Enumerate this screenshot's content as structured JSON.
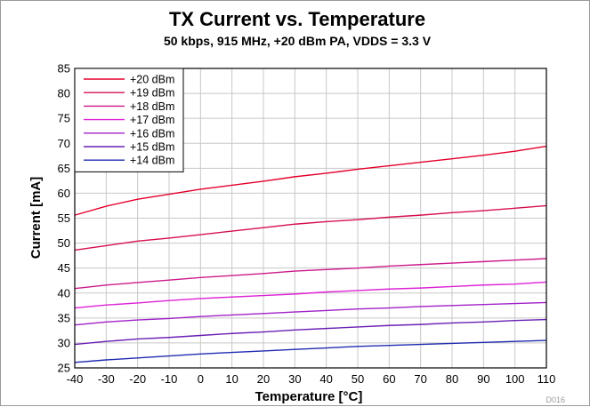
{
  "chart_data": {
    "type": "line",
    "title": "TX Current vs. Temperature",
    "subtitle": "50 kbps, 915 MHz, +20 dBm  PA, VDDS = 3.3 V",
    "xlabel": "Temperature [°C]",
    "ylabel": "Current [mA]",
    "xlim": [
      -40,
      110
    ],
    "ylim": [
      25,
      85
    ],
    "xticks": [
      -40,
      -30,
      -20,
      -10,
      0,
      10,
      20,
      30,
      40,
      50,
      60,
      70,
      80,
      90,
      100,
      110
    ],
    "yticks": [
      25,
      30,
      35,
      40,
      45,
      50,
      55,
      60,
      65,
      70,
      75,
      80,
      85
    ],
    "grid": true,
    "legend_position": "top-left",
    "figure_code": "D016",
    "x": [
      -40,
      -30,
      -20,
      -10,
      0,
      10,
      20,
      30,
      40,
      50,
      60,
      70,
      80,
      90,
      100,
      110
    ],
    "series": [
      {
        "name": "+20 dBm",
        "color": "#e4002b",
        "values": [
          55.6,
          57.4,
          58.8,
          59.8,
          60.8,
          61.6,
          62.4,
          63.3,
          64.0,
          64.8,
          65.5,
          66.2,
          66.9,
          67.6,
          68.4,
          69.4
        ]
      },
      {
        "name": "+19 dBm",
        "color": "#d6104d",
        "values": [
          48.6,
          49.5,
          50.4,
          51.0,
          51.7,
          52.4,
          53.1,
          53.8,
          54.3,
          54.7,
          55.2,
          55.6,
          56.1,
          56.5,
          57.0,
          57.5
        ]
      },
      {
        "name": "+18 dBm",
        "color": "#cc1a8a",
        "values": [
          40.9,
          41.6,
          42.1,
          42.6,
          43.1,
          43.5,
          43.9,
          44.4,
          44.7,
          45.0,
          45.4,
          45.7,
          46.0,
          46.3,
          46.6,
          46.9
        ]
      },
      {
        "name": "+17 dBm",
        "color": "#dd22d6",
        "values": [
          37.0,
          37.6,
          38.0,
          38.5,
          38.9,
          39.2,
          39.5,
          39.8,
          40.2,
          40.5,
          40.8,
          41.0,
          41.3,
          41.6,
          41.8,
          42.2
        ]
      },
      {
        "name": "+16 dBm",
        "color": "#a020c8",
        "values": [
          33.6,
          34.2,
          34.6,
          34.9,
          35.3,
          35.6,
          35.9,
          36.2,
          36.5,
          36.8,
          37.0,
          37.3,
          37.5,
          37.7,
          37.9,
          38.1
        ]
      },
      {
        "name": "+15 dBm",
        "color": "#6a1fb5",
        "values": [
          29.7,
          30.3,
          30.8,
          31.1,
          31.5,
          31.9,
          32.2,
          32.6,
          32.9,
          33.2,
          33.5,
          33.7,
          34.0,
          34.2,
          34.5,
          34.7
        ]
      },
      {
        "name": "+14 dBm",
        "color": "#1f2bb0",
        "values": [
          26.1,
          26.6,
          27.0,
          27.4,
          27.8,
          28.1,
          28.4,
          28.7,
          29.0,
          29.3,
          29.5,
          29.7,
          29.9,
          30.1,
          30.3,
          30.5
        ]
      }
    ]
  }
}
